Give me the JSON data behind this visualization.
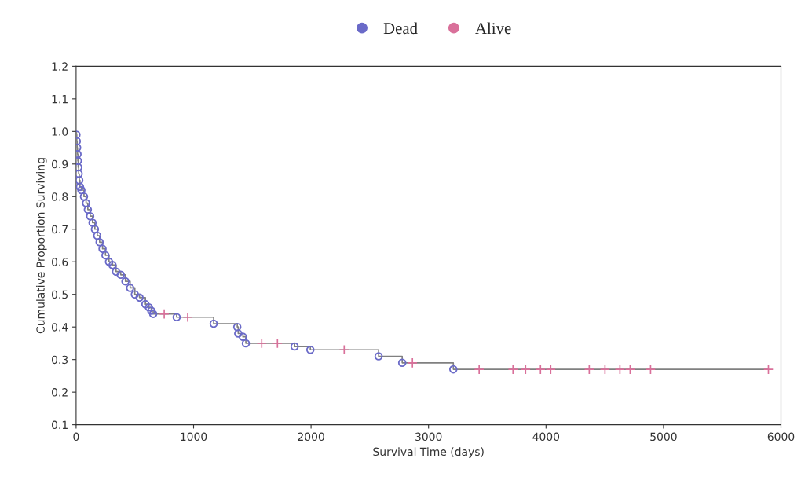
{
  "chart_data": {
    "type": "step",
    "xlabel": "Survival Time (days)",
    "ylabel": "Cumulative Proportion Surviving",
    "xlim": [
      0,
      6000
    ],
    "xticks": [
      0,
      1000,
      2000,
      3000,
      4000,
      5000,
      6000
    ],
    "ylim": [
      0.1,
      1.2
    ],
    "yticks": [
      0.1,
      0.2,
      0.3,
      0.4,
      0.5,
      0.6,
      0.7,
      0.8,
      0.9,
      {
        "value": 1.0,
        "label": "1.0"
      },
      1.1,
      1.2
    ],
    "grid": false,
    "legend": "top",
    "series": [
      {
        "color": "#808080",
        "marker": "none",
        "x": [
          0,
          3,
          6,
          9,
          12,
          15,
          18,
          22,
          27,
          33,
          45,
          67,
          85,
          100,
          120,
          140,
          160,
          180,
          200,
          225,
          250,
          280,
          310,
          340,
          380,
          420,
          460,
          500,
          540,
          590,
          620,
          640,
          656,
          856,
          1171,
          1372,
          1380,
          1420,
          1445,
          1860,
          1994,
          2575,
          2776,
          3211,
          5893
        ],
        "values": [
          1.0,
          0.99,
          0.97,
          0.95,
          0.93,
          0.91,
          0.89,
          0.87,
          0.85,
          0.83,
          0.82,
          0.8,
          0.78,
          0.76,
          0.74,
          0.72,
          0.7,
          0.68,
          0.66,
          0.64,
          0.62,
          0.6,
          0.59,
          0.57,
          0.56,
          0.54,
          0.52,
          0.5,
          0.49,
          0.47,
          0.46,
          0.45,
          0.44,
          0.43,
          0.41,
          0.4,
          0.38,
          0.37,
          0.35,
          0.34,
          0.33,
          0.31,
          0.29,
          0.27,
          0.27
        ]
      },
      {
        "type": "scatter",
        "name": "Dead",
        "color": "#6a6ac8",
        "marker": "circle",
        "x": [
          3,
          6,
          9,
          12,
          15,
          18,
          22,
          27,
          33,
          45,
          67,
          85,
          100,
          120,
          140,
          160,
          180,
          200,
          225,
          250,
          280,
          310,
          340,
          380,
          420,
          460,
          500,
          540,
          590,
          620,
          640,
          656,
          856,
          1171,
          1372,
          1380,
          1420,
          1445,
          1860,
          1994,
          2575,
          2776,
          3211
        ],
        "values": [
          0.99,
          0.97,
          0.95,
          0.93,
          0.91,
          0.89,
          0.87,
          0.85,
          0.83,
          0.82,
          0.8,
          0.78,
          0.76,
          0.74,
          0.72,
          0.7,
          0.68,
          0.66,
          0.64,
          0.62,
          0.6,
          0.59,
          0.57,
          0.56,
          0.54,
          0.52,
          0.5,
          0.49,
          0.47,
          0.46,
          0.45,
          0.44,
          0.43,
          0.41,
          0.4,
          0.38,
          0.37,
          0.35,
          0.34,
          0.33,
          0.31,
          0.29,
          0.27
        ]
      },
      {
        "type": "scatter",
        "name": "Alive",
        "color": "#d9709a",
        "marker": "cross",
        "x": [
          750,
          950,
          1580,
          1714,
          2282,
          2863,
          3431,
          3719,
          3826,
          3953,
          4040,
          4368,
          4502,
          4629,
          4716,
          4890,
          5893
        ],
        "values": [
          0.44,
          0.43,
          0.35,
          0.35,
          0.33,
          0.29,
          0.27,
          0.27,
          0.27,
          0.27,
          0.27,
          0.27,
          0.27,
          0.27,
          0.27,
          0.27,
          0.27
        ]
      }
    ]
  }
}
